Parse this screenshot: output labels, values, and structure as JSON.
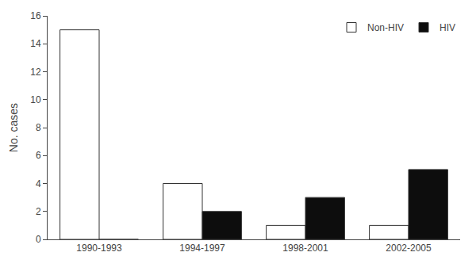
{
  "chart_data": {
    "type": "bar",
    "categories": [
      "1990-1993",
      "1994-1997",
      "1998-2001",
      "2002-2005"
    ],
    "series": [
      {
        "name": "Non-HIV",
        "color": "#ffffff",
        "values": [
          15,
          4,
          1,
          1
        ]
      },
      {
        "name": "HIV",
        "color": "#0d0d0d",
        "values": [
          0,
          2,
          3,
          5
        ]
      }
    ],
    "ylabel": "No. cases",
    "ylim": [
      0,
      16
    ],
    "yticks": [
      0,
      2,
      4,
      6,
      8,
      10,
      12,
      14,
      16
    ],
    "grid": false,
    "legend": "upper right"
  }
}
